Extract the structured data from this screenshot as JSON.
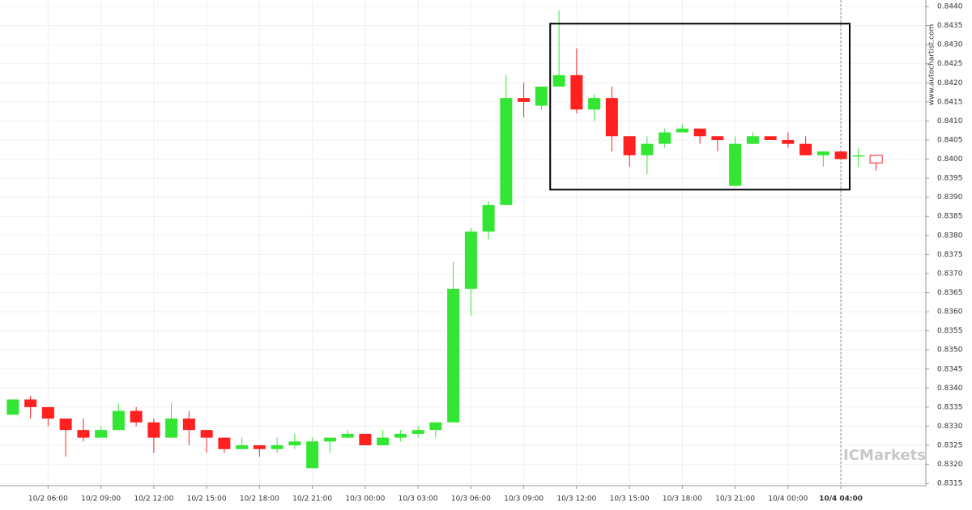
{
  "chart_data": {
    "type": "candlestick",
    "watermark": "www.autochartist.com",
    "brand": "ICMarkets",
    "categories": [
      null,
      null,
      "10/2 06:00",
      null,
      null,
      "10/2 09:00",
      null,
      null,
      "10/2 12:00",
      null,
      null,
      "10/2 15:00",
      null,
      null,
      "10/2 18:00",
      null,
      null,
      "10/2 21:00",
      null,
      null,
      "10/3 00:00",
      null,
      null,
      "10/3 03:00",
      null,
      null,
      "10/3 06:00",
      null,
      null,
      "10/3 09:00",
      null,
      null,
      "10/3 12:00",
      null,
      null,
      "10/3 15:00",
      null,
      null,
      "10/3 18:00",
      null,
      null,
      "10/3 21:00",
      null,
      null,
      "10/4 00:00",
      null,
      null,
      "10/4 04:00",
      null,
      null
    ],
    "open": [
      0.8333,
      0.8337,
      0.8335,
      0.8332,
      0.8329,
      0.8327,
      0.8329,
      0.8334,
      0.8331,
      0.8327,
      0.8332,
      0.8329,
      0.8327,
      0.8324,
      0.8325,
      0.8324,
      0.8325,
      0.8319,
      0.8326,
      0.8327,
      0.8328,
      0.8325,
      0.8327,
      0.8328,
      0.8329,
      0.8331,
      0.8366,
      0.8381,
      0.8388,
      0.8416,
      0.8414,
      0.8419,
      0.8422,
      0.8413,
      0.8416,
      0.8406,
      0.8401,
      0.8404,
      0.8407,
      0.8408,
      0.8406,
      0.8393,
      0.8404,
      0.8406,
      0.8405,
      0.8404,
      0.8401,
      0.8402,
      0.8401,
      0.8401
    ],
    "high": [
      0.8337,
      0.8338,
      0.8335,
      0.8332,
      0.8332,
      0.833,
      0.8336,
      0.8335,
      0.8332,
      0.8336,
      0.8334,
      0.8329,
      0.8327,
      0.8327,
      0.8325,
      0.8327,
      0.8328,
      0.8327,
      0.8327,
      0.8329,
      0.8328,
      0.8329,
      0.8329,
      0.833,
      0.8331,
      0.8373,
      0.8382,
      0.8389,
      0.8422,
      0.842,
      0.8419,
      0.8439,
      0.8429,
      0.8417,
      0.8419,
      0.8406,
      0.8406,
      0.8408,
      0.8409,
      0.8408,
      0.8406,
      0.8406,
      0.8407,
      0.8406,
      0.8407,
      0.8406,
      0.8402,
      0.8402,
      0.8403,
      0.8401
    ],
    "low": [
      0.8333,
      0.8332,
      0.833,
      0.8322,
      0.8326,
      0.8327,
      0.8329,
      0.833,
      0.8323,
      0.8327,
      0.8325,
      0.8323,
      0.8323,
      0.8324,
      0.8322,
      0.8323,
      0.8324,
      0.8319,
      0.8323,
      0.8327,
      0.8325,
      0.8325,
      0.8326,
      0.8327,
      0.8327,
      0.8331,
      0.8359,
      0.8379,
      0.8388,
      0.8411,
      0.8413,
      0.8419,
      0.8412,
      0.841,
      0.8402,
      0.8398,
      0.8396,
      0.8403,
      0.8407,
      0.8404,
      0.8402,
      0.8393,
      0.8404,
      0.8405,
      0.8403,
      0.8401,
      0.8398,
      0.84,
      0.8398,
      0.8397
    ],
    "close": [
      0.8337,
      0.8335,
      0.8332,
      0.8329,
      0.8327,
      0.8329,
      0.8334,
      0.8331,
      0.8327,
      0.8332,
      0.8329,
      0.8327,
      0.8324,
      0.8325,
      0.8324,
      0.8325,
      0.8326,
      0.8326,
      0.8327,
      0.8328,
      0.8325,
      0.8327,
      0.8328,
      0.8329,
      0.8331,
      0.8366,
      0.8381,
      0.8388,
      0.8416,
      0.8415,
      0.8419,
      0.8422,
      0.8413,
      0.8416,
      0.8406,
      0.8401,
      0.8404,
      0.8407,
      0.8408,
      0.8406,
      0.8405,
      0.8404,
      0.8406,
      0.8405,
      0.8404,
      0.8401,
      0.8402,
      0.84,
      0.8401,
      0.8399
    ],
    "up_color": "#33e633",
    "down_color": "#ff2020",
    "ylim": [
      0.83144,
      0.84417
    ],
    "yticks": [
      {
        "value": 0.844,
        "label": "0.8440"
      },
      0.8435,
      {
        "value": 0.843,
        "label": "0.8430"
      },
      0.8425,
      {
        "value": 0.842,
        "label": "0.8420"
      },
      0.8415,
      {
        "value": 0.841,
        "label": "0.8410"
      },
      0.8405,
      {
        "value": 0.84,
        "label": "0.8400"
      },
      0.8395,
      {
        "value": 0.839,
        "label": "0.8390"
      },
      0.8385,
      {
        "value": 0.838,
        "label": "0.8380"
      },
      0.8375,
      {
        "value": 0.837,
        "label": "0.8370"
      },
      0.8365,
      {
        "value": 0.836,
        "label": "0.8360"
      },
      0.8355,
      {
        "value": 0.835,
        "label": "0.8350"
      },
      0.8345,
      {
        "value": 0.834,
        "label": "0.8340"
      },
      0.8335,
      {
        "value": 0.833,
        "label": "0.8330"
      },
      0.8325,
      {
        "value": 0.832,
        "label": "0.8320"
      },
      0.8315
    ],
    "grid": true,
    "pattern_box": {
      "x": [
        30.5,
        47.5
      ],
      "y": [
        0.8392,
        0.84355
      ]
    },
    "current_category": 47
  }
}
